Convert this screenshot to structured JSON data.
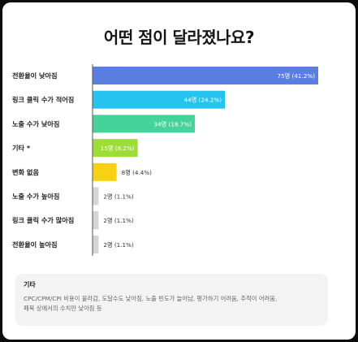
{
  "title": "어떤 점이 달라졌나요?",
  "chart_data": {
    "type": "bar",
    "orientation": "horizontal",
    "categories": [
      "전환율이 낮아짐",
      "링크 클릭 수가 적어짐",
      "노출 수가 낮아짐",
      "기타 *",
      "변화 없음",
      "노출 수가 높아짐",
      "링크 클릭 수가 많아짐",
      "전환율이 높아짐"
    ],
    "values": [
      75,
      44,
      34,
      15,
      8,
      2,
      2,
      2
    ],
    "labels": [
      "75명 (41.2%)",
      "44명 (24.2%)",
      "34명 (18.7%)",
      "15명 (8.2%)",
      "8명 (4.4%)",
      "2명 (1.1%)",
      "2명 (1.1%)",
      "2명 (1.1%)"
    ],
    "colors": [
      "#5b7fe0",
      "#27c3ef",
      "#45d29c",
      "#9cde33",
      "#f7d112",
      "#d4d4d4",
      "#d4d4d4",
      "#d4d4d4"
    ],
    "xlim": [
      0,
      75
    ],
    "grid": false,
    "legend": "none"
  },
  "note": {
    "title": "기타",
    "lines": [
      "CPC/CPM/CPI 비용이 올라감, 도달수도 낮아짐, 노출 빈도가 늘어남, 평가하기 어려움, 추적이 어려움,",
      "페북 상에서의 수치만 낮아짐 등"
    ]
  }
}
